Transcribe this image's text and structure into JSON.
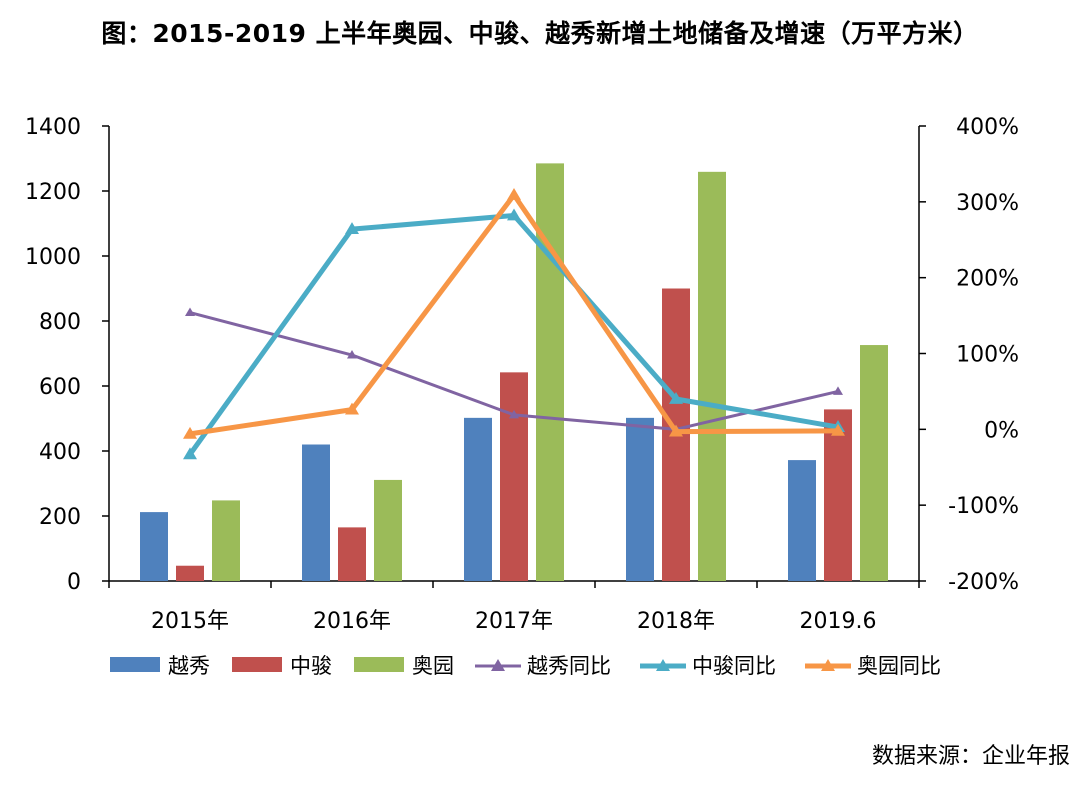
{
  "title": "图：2015-2019 上半年奥园、中骏、越秀新增土地储备及增速（万平方米）",
  "source": "数据来源：企业年报",
  "colors": {
    "yuexiu": "#4f81bd",
    "zhongjun": "#c0504d",
    "aoyuan": "#9bbb59",
    "yuexiu_yoy": "#8064a2",
    "zhongjun_yoy": "#4bacc6",
    "aoyuan_yoy": "#f79646",
    "axis": "#000000"
  },
  "chart_data": {
    "type": "bar",
    "categories": [
      "2015年",
      "2016年",
      "2017年",
      "2018年",
      "2019.6"
    ],
    "series": [
      {
        "name": "越秀",
        "type": "bar",
        "axis": "left",
        "values": [
          212,
          420,
          502,
          502,
          372
        ]
      },
      {
        "name": "中骏",
        "type": "bar",
        "axis": "left",
        "values": [
          47,
          165,
          642,
          900,
          528
        ]
      },
      {
        "name": "奥园",
        "type": "bar",
        "axis": "left",
        "values": [
          248,
          311,
          1285,
          1259,
          726
        ]
      },
      {
        "name": "越秀同比",
        "type": "line",
        "axis": "right",
        "values": [
          154,
          98,
          19,
          0,
          50
        ]
      },
      {
        "name": "中骏同比",
        "type": "line",
        "axis": "right",
        "values": [
          -33,
          264,
          282,
          40,
          3
        ]
      },
      {
        "name": "奥园同比",
        "type": "line",
        "axis": "right",
        "values": [
          -6,
          26,
          309,
          -3,
          -2
        ]
      }
    ],
    "left_axis": {
      "min": 0,
      "max": 1400,
      "step": 200,
      "ticks": [
        "0",
        "200",
        "400",
        "600",
        "800",
        "1000",
        "1200",
        "1400"
      ]
    },
    "right_axis": {
      "min": -200,
      "max": 400,
      "step": 100,
      "unit": "%",
      "ticks": [
        "-200%",
        "-100%",
        "0%",
        "100%",
        "200%",
        "300%",
        "400%"
      ]
    },
    "grid": false,
    "legend_position": "bottom"
  }
}
